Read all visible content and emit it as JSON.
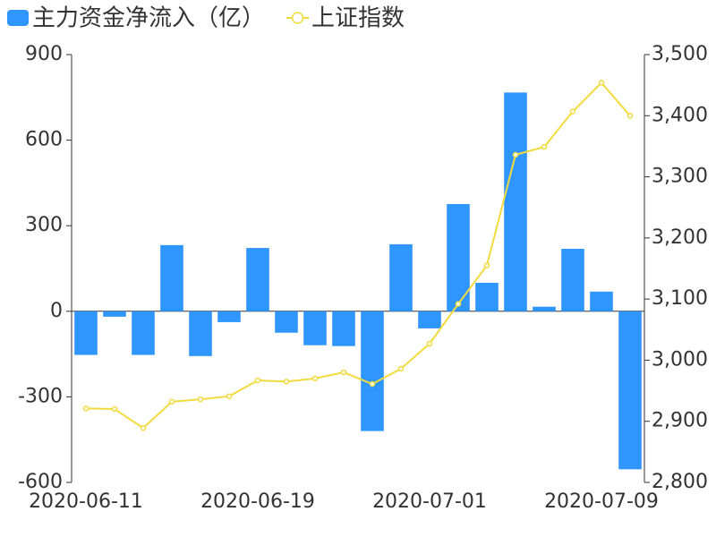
{
  "chart_data": {
    "type": "bar-line",
    "categories": [
      "2020-06-11",
      null,
      null,
      null,
      null,
      null,
      "2020-06-19",
      null,
      null,
      null,
      null,
      null,
      "2020-07-01",
      null,
      null,
      null,
      null,
      null,
      "2020-07-09",
      null
    ],
    "series": [
      {
        "name": "主力资金净流入（亿）",
        "type": "bar",
        "axis": "y",
        "color": "#2f96ff",
        "values": [
          -153,
          -19,
          -153,
          232,
          -157,
          -38,
          222,
          -75,
          -119,
          -122,
          -420,
          235,
          -60,
          376,
          100,
          767,
          16,
          219,
          69,
          -554
        ]
      },
      {
        "name": "上证指数",
        "type": "line",
        "axis": "y2",
        "color": "#f2da3f",
        "values": [
          2921,
          2920,
          2889,
          2932,
          2936,
          2941,
          2967,
          2965,
          2970,
          2980,
          2961,
          2986,
          3027,
          3092,
          3155,
          3336,
          3349,
          3407,
          3454,
          3400
        ]
      }
    ],
    "ylim": [
      -600,
      900
    ],
    "yticks": [
      -600,
      -300,
      0,
      300,
      600,
      900
    ],
    "y2lim": [
      2800,
      3500
    ],
    "y2ticks": [
      {
        "value": 2800,
        "label": "2,800"
      },
      {
        "value": 2900,
        "label": "2,900"
      },
      {
        "value": 3000,
        "label": "3,000"
      },
      {
        "value": 3100,
        "label": "3,100"
      },
      {
        "value": 3200,
        "label": "3,200"
      },
      {
        "value": 3300,
        "label": "3,300"
      },
      {
        "value": 3400,
        "label": "3,400"
      },
      {
        "value": 3500,
        "label": "3,500"
      }
    ],
    "legend": "top-left"
  }
}
